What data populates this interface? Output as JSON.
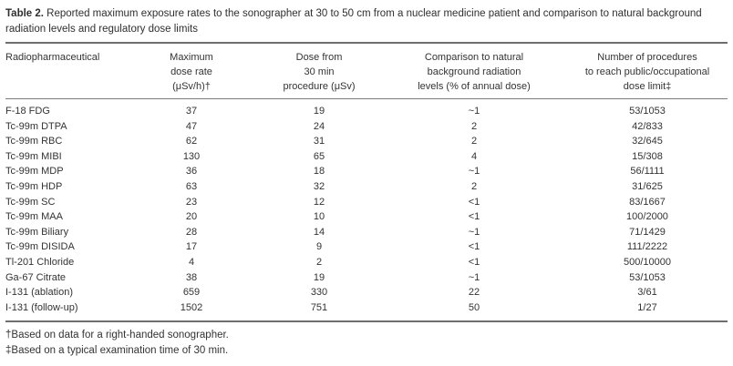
{
  "caption": {
    "label": "Table 2.",
    "text": "Reported maximum exposure rates to the sonographer at 30 to 50 cm from a nuclear medicine patient and comparison to natural background radiation levels and regulatory dose limits"
  },
  "headers": [
    [
      "Radiopharmaceutical"
    ],
    [
      "Maximum",
      "dose rate",
      "(μSv/h)†"
    ],
    [
      "Dose from",
      "30 min",
      "procedure (μSv)"
    ],
    [
      "Comparison to natural",
      "background radiation",
      "levels (% of annual dose)"
    ],
    [
      "Number of procedures",
      "to reach public/occupational",
      "dose limit‡"
    ]
  ],
  "rows": [
    [
      "F-18 FDG",
      "37",
      "19",
      "~1",
      "53/1053"
    ],
    [
      "Tc-99m DTPA",
      "47",
      "24",
      "2",
      "42/833"
    ],
    [
      "Tc-99m RBC",
      "62",
      "31",
      "2",
      "32/645"
    ],
    [
      "Tc-99m MIBI",
      "130",
      "65",
      "4",
      "15/308"
    ],
    [
      "Tc-99m MDP",
      "36",
      "18",
      "~1",
      "56/1111"
    ],
    [
      "Tc-99m HDP",
      "63",
      "32",
      "2",
      "31/625"
    ],
    [
      "Tc-99m SC",
      "23",
      "12",
      "<1",
      "83/1667"
    ],
    [
      "Tc-99m MAA",
      "20",
      "10",
      "<1",
      "100/2000"
    ],
    [
      "Tc-99m Biliary",
      "28",
      "14",
      "~1",
      "71/1429"
    ],
    [
      "Tc-99m DISIDA",
      "17",
      "9",
      "<1",
      "111/2222"
    ],
    [
      "Tl-201 Chloride",
      "4",
      "2",
      "<1",
      "500/10000"
    ],
    [
      "Ga-67 Citrate",
      "38",
      "19",
      "~1",
      "53/1053"
    ],
    [
      "I-131 (ablation)",
      "659",
      "330",
      "22",
      "3/61"
    ],
    [
      "I-131 (follow-up)",
      "1502",
      "751",
      "50",
      "1/27"
    ]
  ],
  "footnotes": [
    "†Based on data for a right-handed sonographer.",
    "‡Based on a typical examination time of 30 min."
  ]
}
